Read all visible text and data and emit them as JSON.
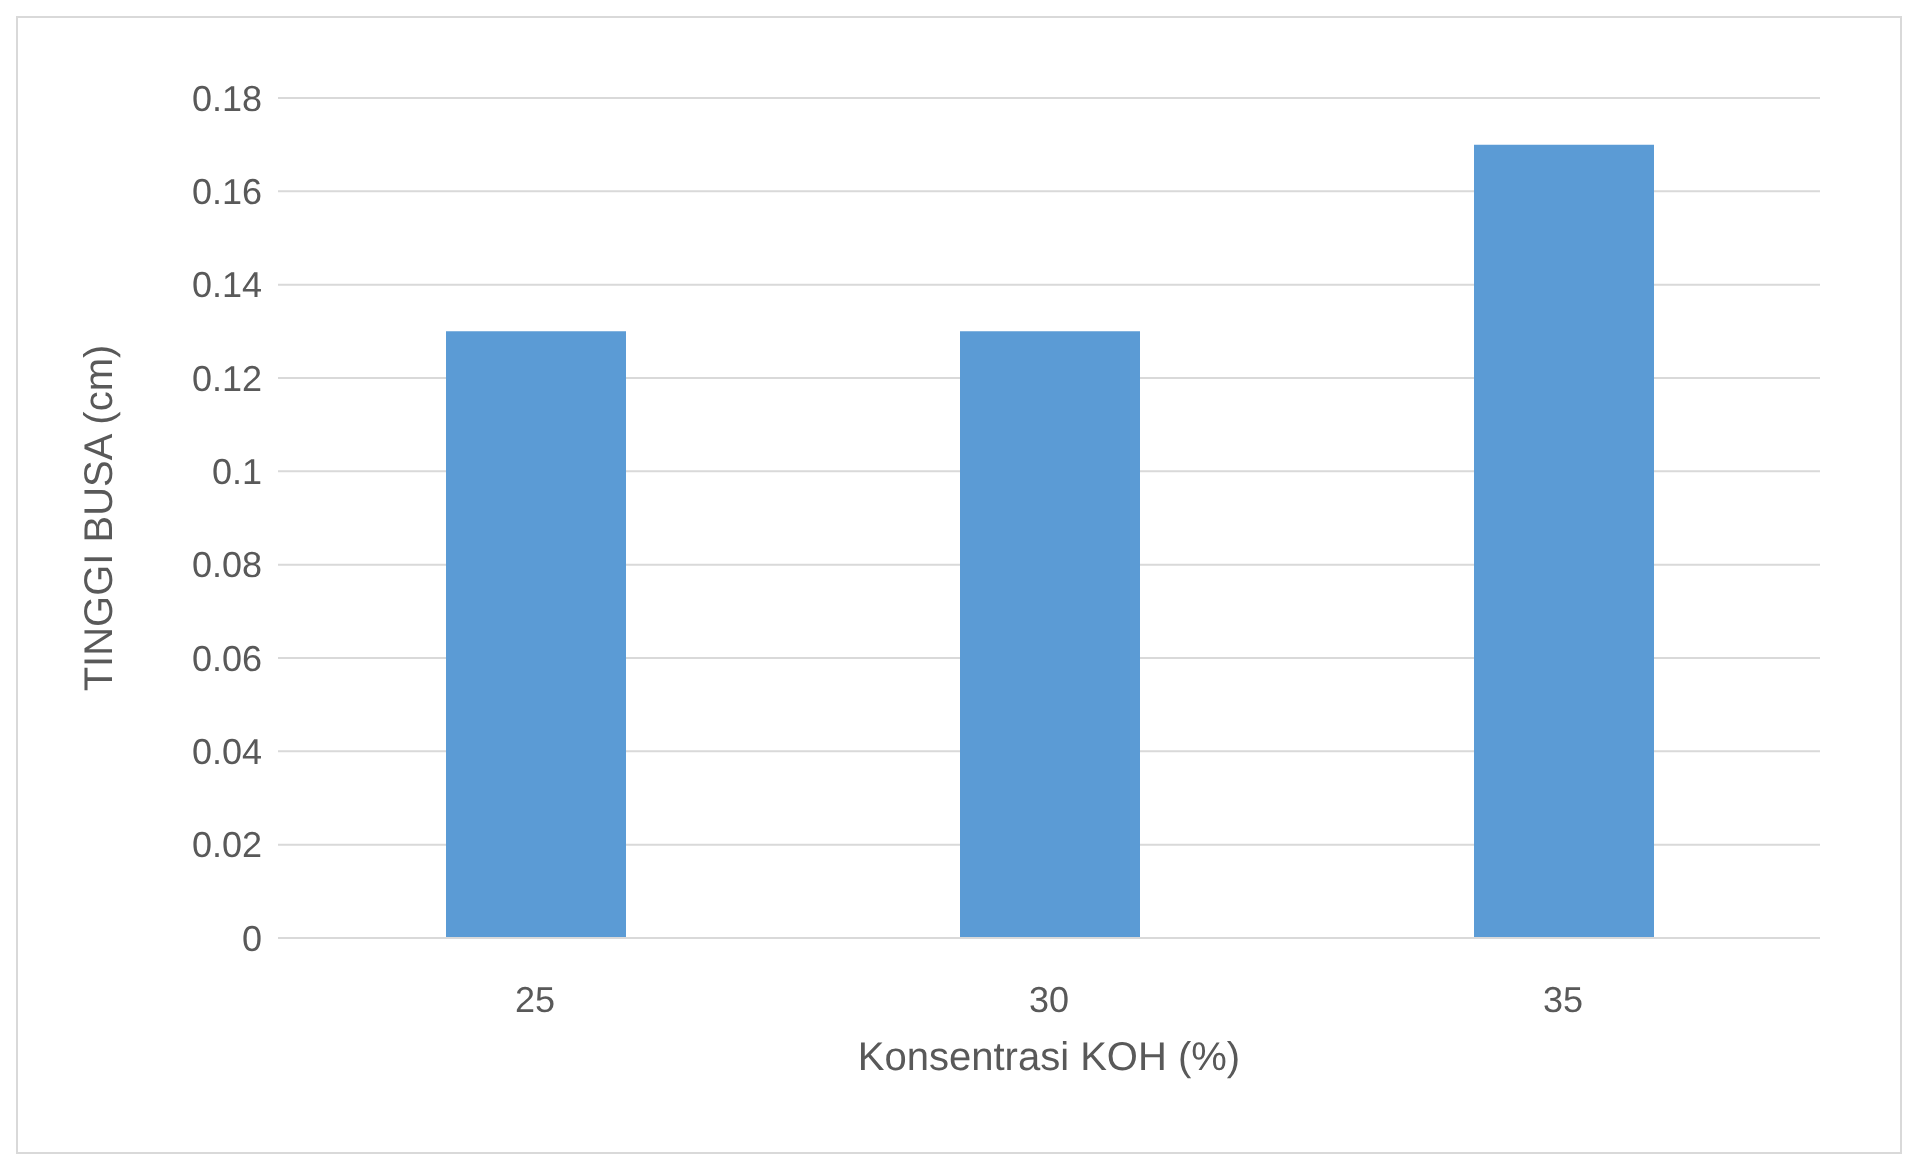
{
  "chart_data": {
    "type": "bar",
    "xlabel": "Konsentrasi KOH (%)",
    "ylabel": "TINGGI BUSA (cm)",
    "categories": [
      "25",
      "30",
      "35"
    ],
    "values": [
      0.13,
      0.13,
      0.17
    ],
    "color": "#5b9bd5",
    "ylim": [
      0,
      0.18
    ],
    "yticks": [
      0,
      0.02,
      0.04,
      0.06,
      0.08,
      0.1,
      0.12,
      0.14,
      0.16,
      0.18
    ],
    "grid": "y"
  }
}
